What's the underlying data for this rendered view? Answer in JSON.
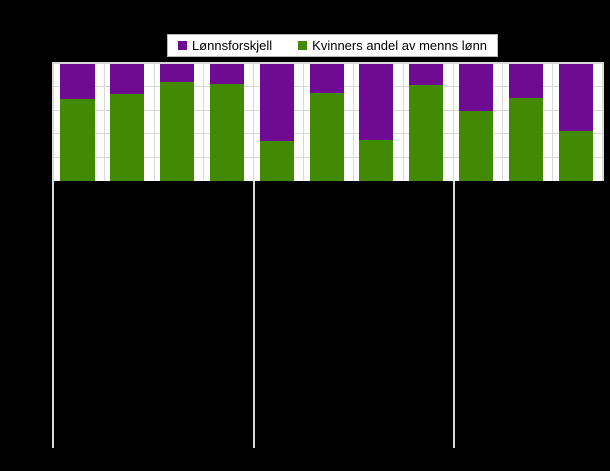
{
  "figure": {
    "background_color": "#000000",
    "title_visible": false,
    "axis_tick_labels_visible": false
  },
  "legend": {
    "position": "top-center",
    "background_color": "#ffffff",
    "border_color": "#b9b9b9",
    "items": [
      {
        "label": "Lønnsforskjell",
        "color": "#6e0b92"
      },
      {
        "label": "Kvinners andel av menns lønn",
        "color": "#438a04"
      }
    ]
  },
  "chart_data": {
    "type": "bar",
    "stacked": true,
    "stacked_to_100_percent": true,
    "bar_count": 11,
    "categories": [
      "",
      "",
      "",
      "",
      "",
      "",
      "",
      "",
      "",
      "",
      ""
    ],
    "categories_note": "x-axis category labels and y-axis tick labels are not legible in the image (black text on black background)",
    "series": [
      {
        "name": "Lønnsforskjell",
        "color": "#6e0b92",
        "stack_position": "top",
        "values_pct": [
          30,
          26,
          15,
          17,
          66,
          25,
          65,
          18,
          40,
          29,
          57
        ]
      },
      {
        "name": "Kvinners andel av menns lønn",
        "color": "#438a04",
        "stack_position": "bottom",
        "values_pct": [
          70,
          74,
          85,
          83,
          34,
          75,
          35,
          82,
          60,
          71,
          43
        ]
      }
    ],
    "ylim_pct_of_plot_height": [
      0,
      100
    ],
    "horizontal_gridlines_pct": [
      20,
      40,
      60,
      80
    ],
    "vertical_gridlines": "one at each bar-slot boundary",
    "group_separator_lines_after_slot": [
      0,
      4,
      8
    ],
    "plot_background": "#ffffff",
    "gridline_color": "#d9d9d9",
    "legend_position": "top-center"
  }
}
